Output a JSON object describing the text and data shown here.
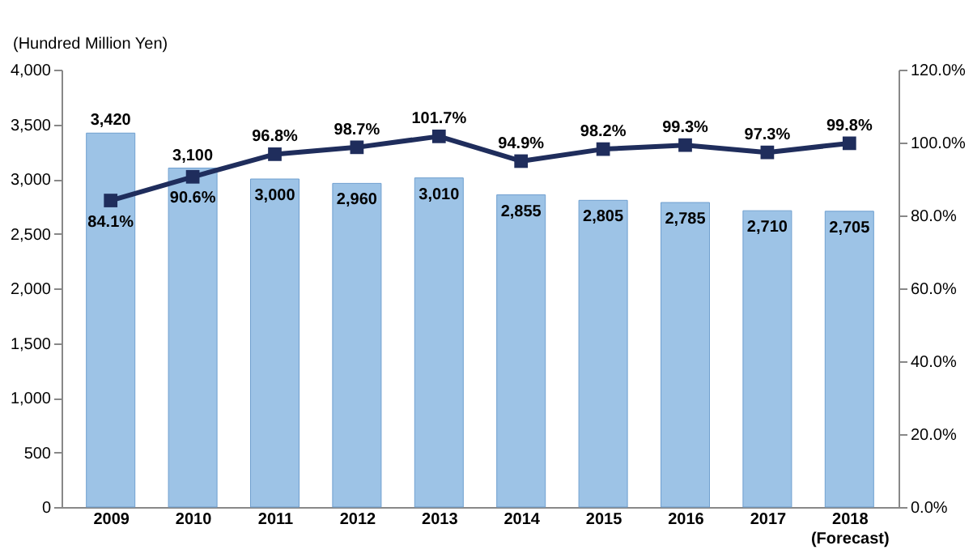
{
  "chart_data": {
    "type": "bar",
    "ylabel": "(Hundred Million Yen)",
    "categories": [
      "2009",
      "2010",
      "2011",
      "2012",
      "2013",
      "2014",
      "2015",
      "2016",
      "2017",
      "2018\n(Forecast)"
    ],
    "series": [
      {
        "color": "#9dc3e6",
        "values": [
          3420,
          3100,
          3000,
          2960,
          3010,
          2855,
          2805,
          2785,
          2710,
          2705
        ],
        "value_labels": [
          "3,420",
          "3,100",
          "3,000",
          "2,960",
          "3,010",
          "2,855",
          "2,805",
          "2,785",
          "2,710",
          "2,705"
        ]
      },
      {
        "type": "line",
        "axis": "y2",
        "color": "#1f2d5c",
        "values": [
          84.1,
          90.6,
          96.8,
          98.7,
          101.7,
          94.9,
          98.2,
          99.3,
          97.3,
          99.8
        ],
        "value_labels": [
          "84.1%",
          "90.6%",
          "96.8%",
          "98.7%",
          "101.7%",
          "94.9%",
          "98.2%",
          "99.3%",
          "97.3%",
          "99.8%"
        ]
      }
    ],
    "ylim": [
      0,
      4000
    ],
    "yticks": [
      0,
      500,
      {
        "value": 1000,
        "label": "1,000"
      },
      {
        "value": 1500,
        "label": "1,500"
      },
      {
        "value": 2000,
        "label": "2,000"
      },
      {
        "value": 2500,
        "label": "2,500"
      },
      {
        "value": 3000,
        "label": "3,000"
      },
      {
        "value": 3500,
        "label": "3,500"
      },
      {
        "value": 4000,
        "label": "4,000"
      }
    ],
    "y2lim": [
      0,
      120
    ],
    "y2ticks": [
      {
        "value": 0,
        "label": "0.0%"
      },
      {
        "value": 20,
        "label": "20.0%"
      },
      {
        "value": 40,
        "label": "40.0%"
      },
      {
        "value": 60,
        "label": "60.0%"
      },
      {
        "value": 80,
        "label": "80.0%"
      },
      {
        "value": 100,
        "label": "100.0%"
      },
      {
        "value": 120,
        "label": "120.0%"
      }
    ],
    "marker": "square",
    "line_style": "solid",
    "grid": false
  }
}
